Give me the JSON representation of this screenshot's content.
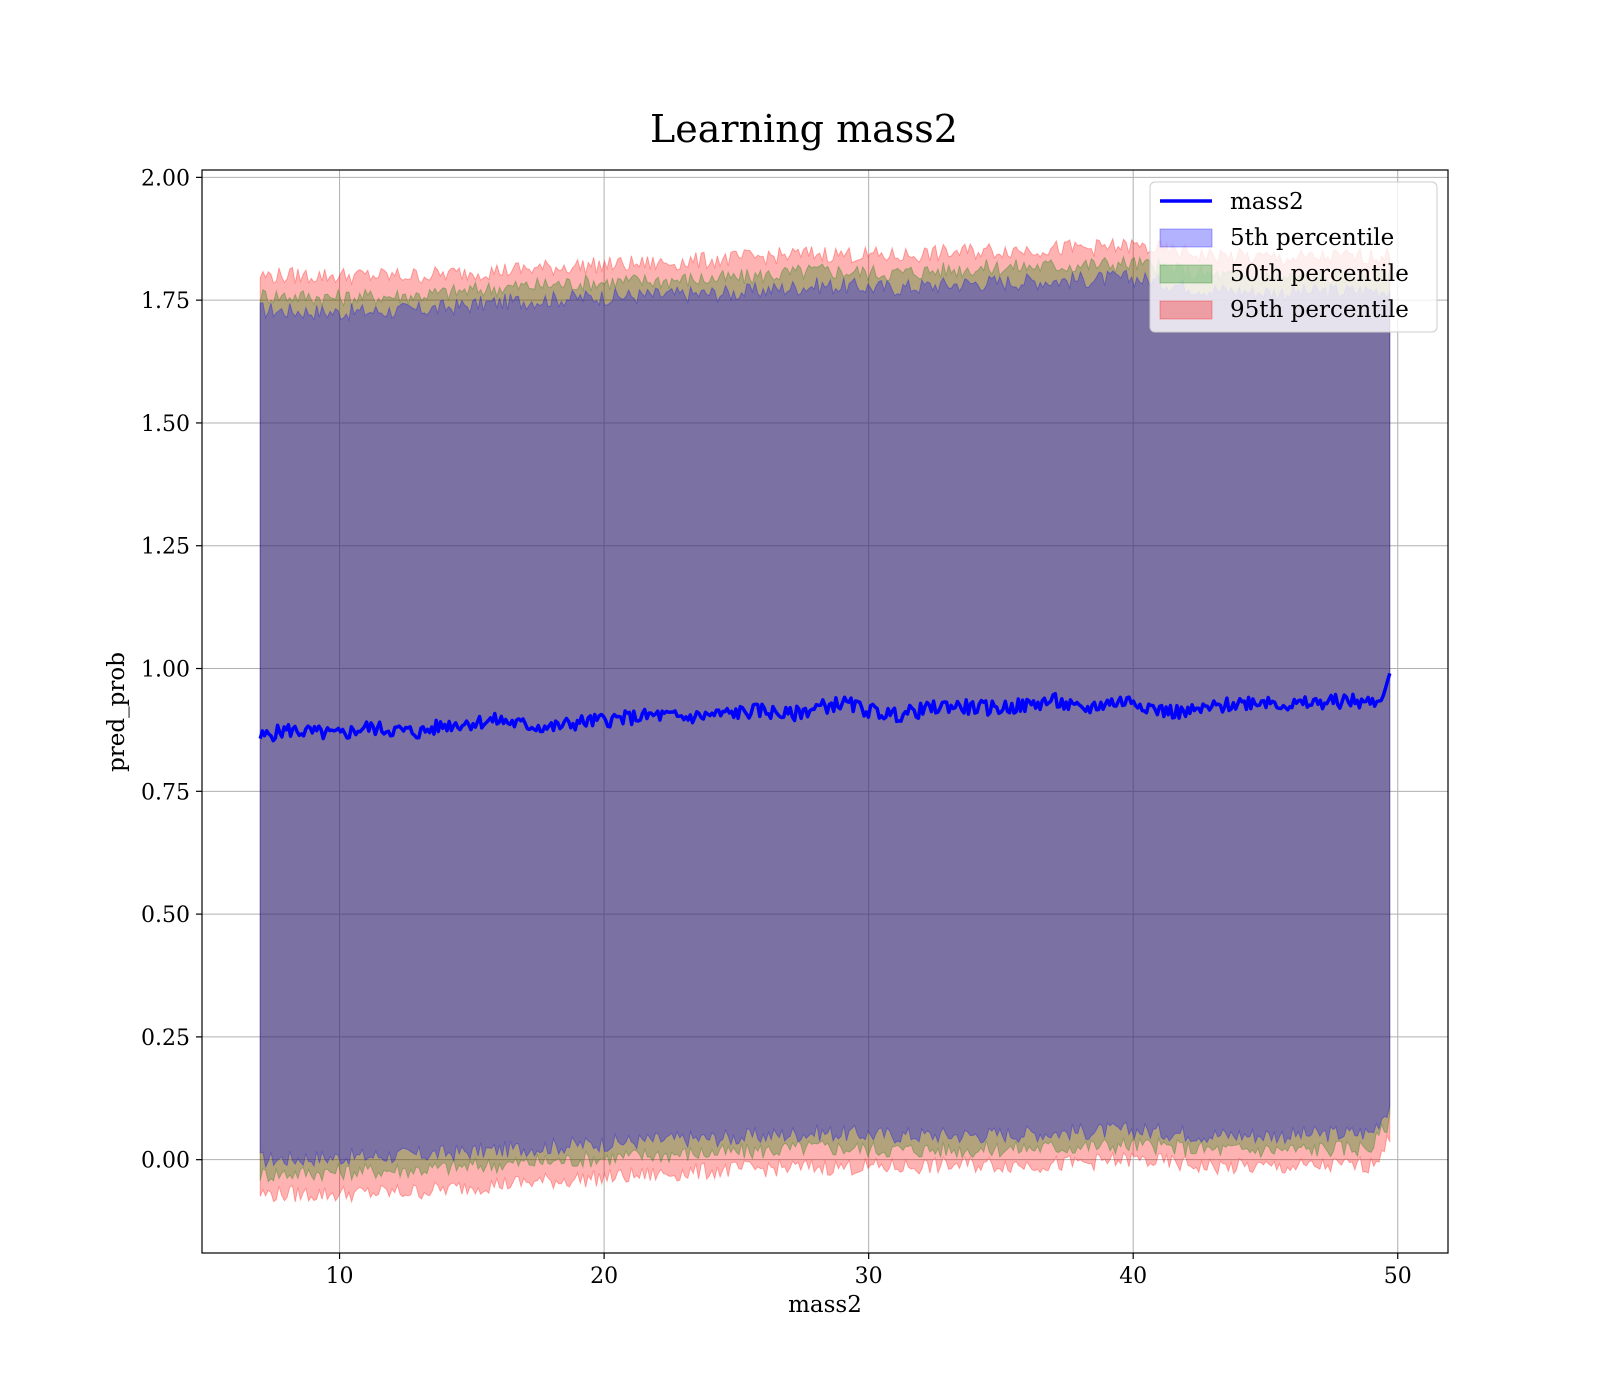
{
  "chart_data": {
    "type": "line",
    "title": "Learning mass2",
    "xlabel": "mass2",
    "ylabel": "pred_prob",
    "xlim": [
      4.8,
      51.9
    ],
    "ylim": [
      -0.19,
      2.015
    ],
    "xticks": [
      10,
      20,
      30,
      40,
      50
    ],
    "yticks": [
      0.0,
      0.25,
      0.5,
      0.75,
      1.0,
      1.25,
      1.5,
      1.75,
      2.0
    ],
    "xtick_labels": [
      "10",
      "20",
      "30",
      "40",
      "50"
    ],
    "ytick_labels": [
      "0.00",
      "0.25",
      "0.50",
      "0.75",
      "1.00",
      "1.25",
      "1.50",
      "1.75",
      "2.00"
    ],
    "grid": true,
    "legend_position": "top-right",
    "line": {
      "name": "mass2",
      "color": "#0000ff",
      "x": [
        7.0,
        8.0,
        9.0,
        10.0,
        11.0,
        12.0,
        13.0,
        14.0,
        15.0,
        16.0,
        17.0,
        18.0,
        19.0,
        20.0,
        21.0,
        22.0,
        23.0,
        24.0,
        25.0,
        26.0,
        27.0,
        28.0,
        29.0,
        30.0,
        31.0,
        32.0,
        33.0,
        34.0,
        35.0,
        36.0,
        37.0,
        38.0,
        39.0,
        40.0,
        41.0,
        42.0,
        43.0,
        44.0,
        45.0,
        46.0,
        47.0,
        48.0,
        49.0,
        49.4,
        49.7
      ],
      "y": [
        0.86,
        0.875,
        0.87,
        0.865,
        0.88,
        0.875,
        0.87,
        0.885,
        0.89,
        0.895,
        0.885,
        0.88,
        0.89,
        0.895,
        0.9,
        0.905,
        0.9,
        0.905,
        0.91,
        0.915,
        0.905,
        0.92,
        0.93,
        0.915,
        0.905,
        0.915,
        0.925,
        0.92,
        0.92,
        0.925,
        0.935,
        0.915,
        0.93,
        0.935,
        0.915,
        0.91,
        0.92,
        0.93,
        0.935,
        0.925,
        0.93,
        0.935,
        0.93,
        0.935,
        0.99
      ]
    },
    "bands": [
      {
        "name": "5th percentile",
        "color": "#0000ff",
        "opacity": 0.3,
        "x": [
          7.0,
          10.0,
          13.0,
          16.0,
          19.0,
          22.0,
          25.0,
          28.0,
          31.0,
          34.0,
          37.0,
          40.0,
          43.0,
          46.0,
          49.0,
          49.7
        ],
        "upper": [
          1.73,
          1.725,
          1.73,
          1.745,
          1.755,
          1.76,
          1.765,
          1.78,
          1.775,
          1.785,
          1.79,
          1.795,
          1.77,
          1.765,
          1.77,
          1.77
        ],
        "lower": [
          0.0,
          0.005,
          0.01,
          0.02,
          0.03,
          0.04,
          0.045,
          0.055,
          0.05,
          0.05,
          0.055,
          0.06,
          0.05,
          0.05,
          0.055,
          0.11
        ]
      },
      {
        "name": "50th percentile",
        "color": "#008000",
        "opacity": 0.3,
        "x": [
          7.0,
          10.0,
          13.0,
          16.0,
          19.0,
          22.0,
          25.0,
          28.0,
          31.0,
          34.0,
          37.0,
          40.0,
          43.0,
          46.0,
          49.0,
          49.7
        ],
        "upper": [
          1.76,
          1.755,
          1.76,
          1.775,
          1.785,
          1.79,
          1.795,
          1.81,
          1.805,
          1.815,
          1.82,
          1.825,
          1.8,
          1.795,
          1.8,
          1.8
        ],
        "lower": [
          -0.03,
          -0.025,
          -0.02,
          -0.01,
          0.0,
          0.01,
          0.015,
          0.025,
          0.02,
          0.02,
          0.025,
          0.03,
          0.02,
          0.02,
          0.025,
          0.08
        ]
      },
      {
        "name": "95th percentile",
        "color": "#ff0000",
        "opacity": 0.3,
        "x": [
          7.0,
          10.0,
          13.0,
          16.0,
          19.0,
          22.0,
          25.0,
          28.0,
          31.0,
          34.0,
          37.0,
          40.0,
          43.0,
          46.0,
          49.0,
          49.7
        ],
        "upper": [
          1.8,
          1.8,
          1.8,
          1.81,
          1.82,
          1.825,
          1.835,
          1.845,
          1.84,
          1.85,
          1.855,
          1.86,
          1.84,
          1.835,
          1.84,
          1.84
        ],
        "lower": [
          -0.07,
          -0.07,
          -0.065,
          -0.05,
          -0.04,
          -0.03,
          -0.02,
          -0.015,
          -0.015,
          -0.01,
          -0.01,
          0.0,
          -0.015,
          -0.015,
          -0.01,
          0.04
        ]
      }
    ]
  }
}
